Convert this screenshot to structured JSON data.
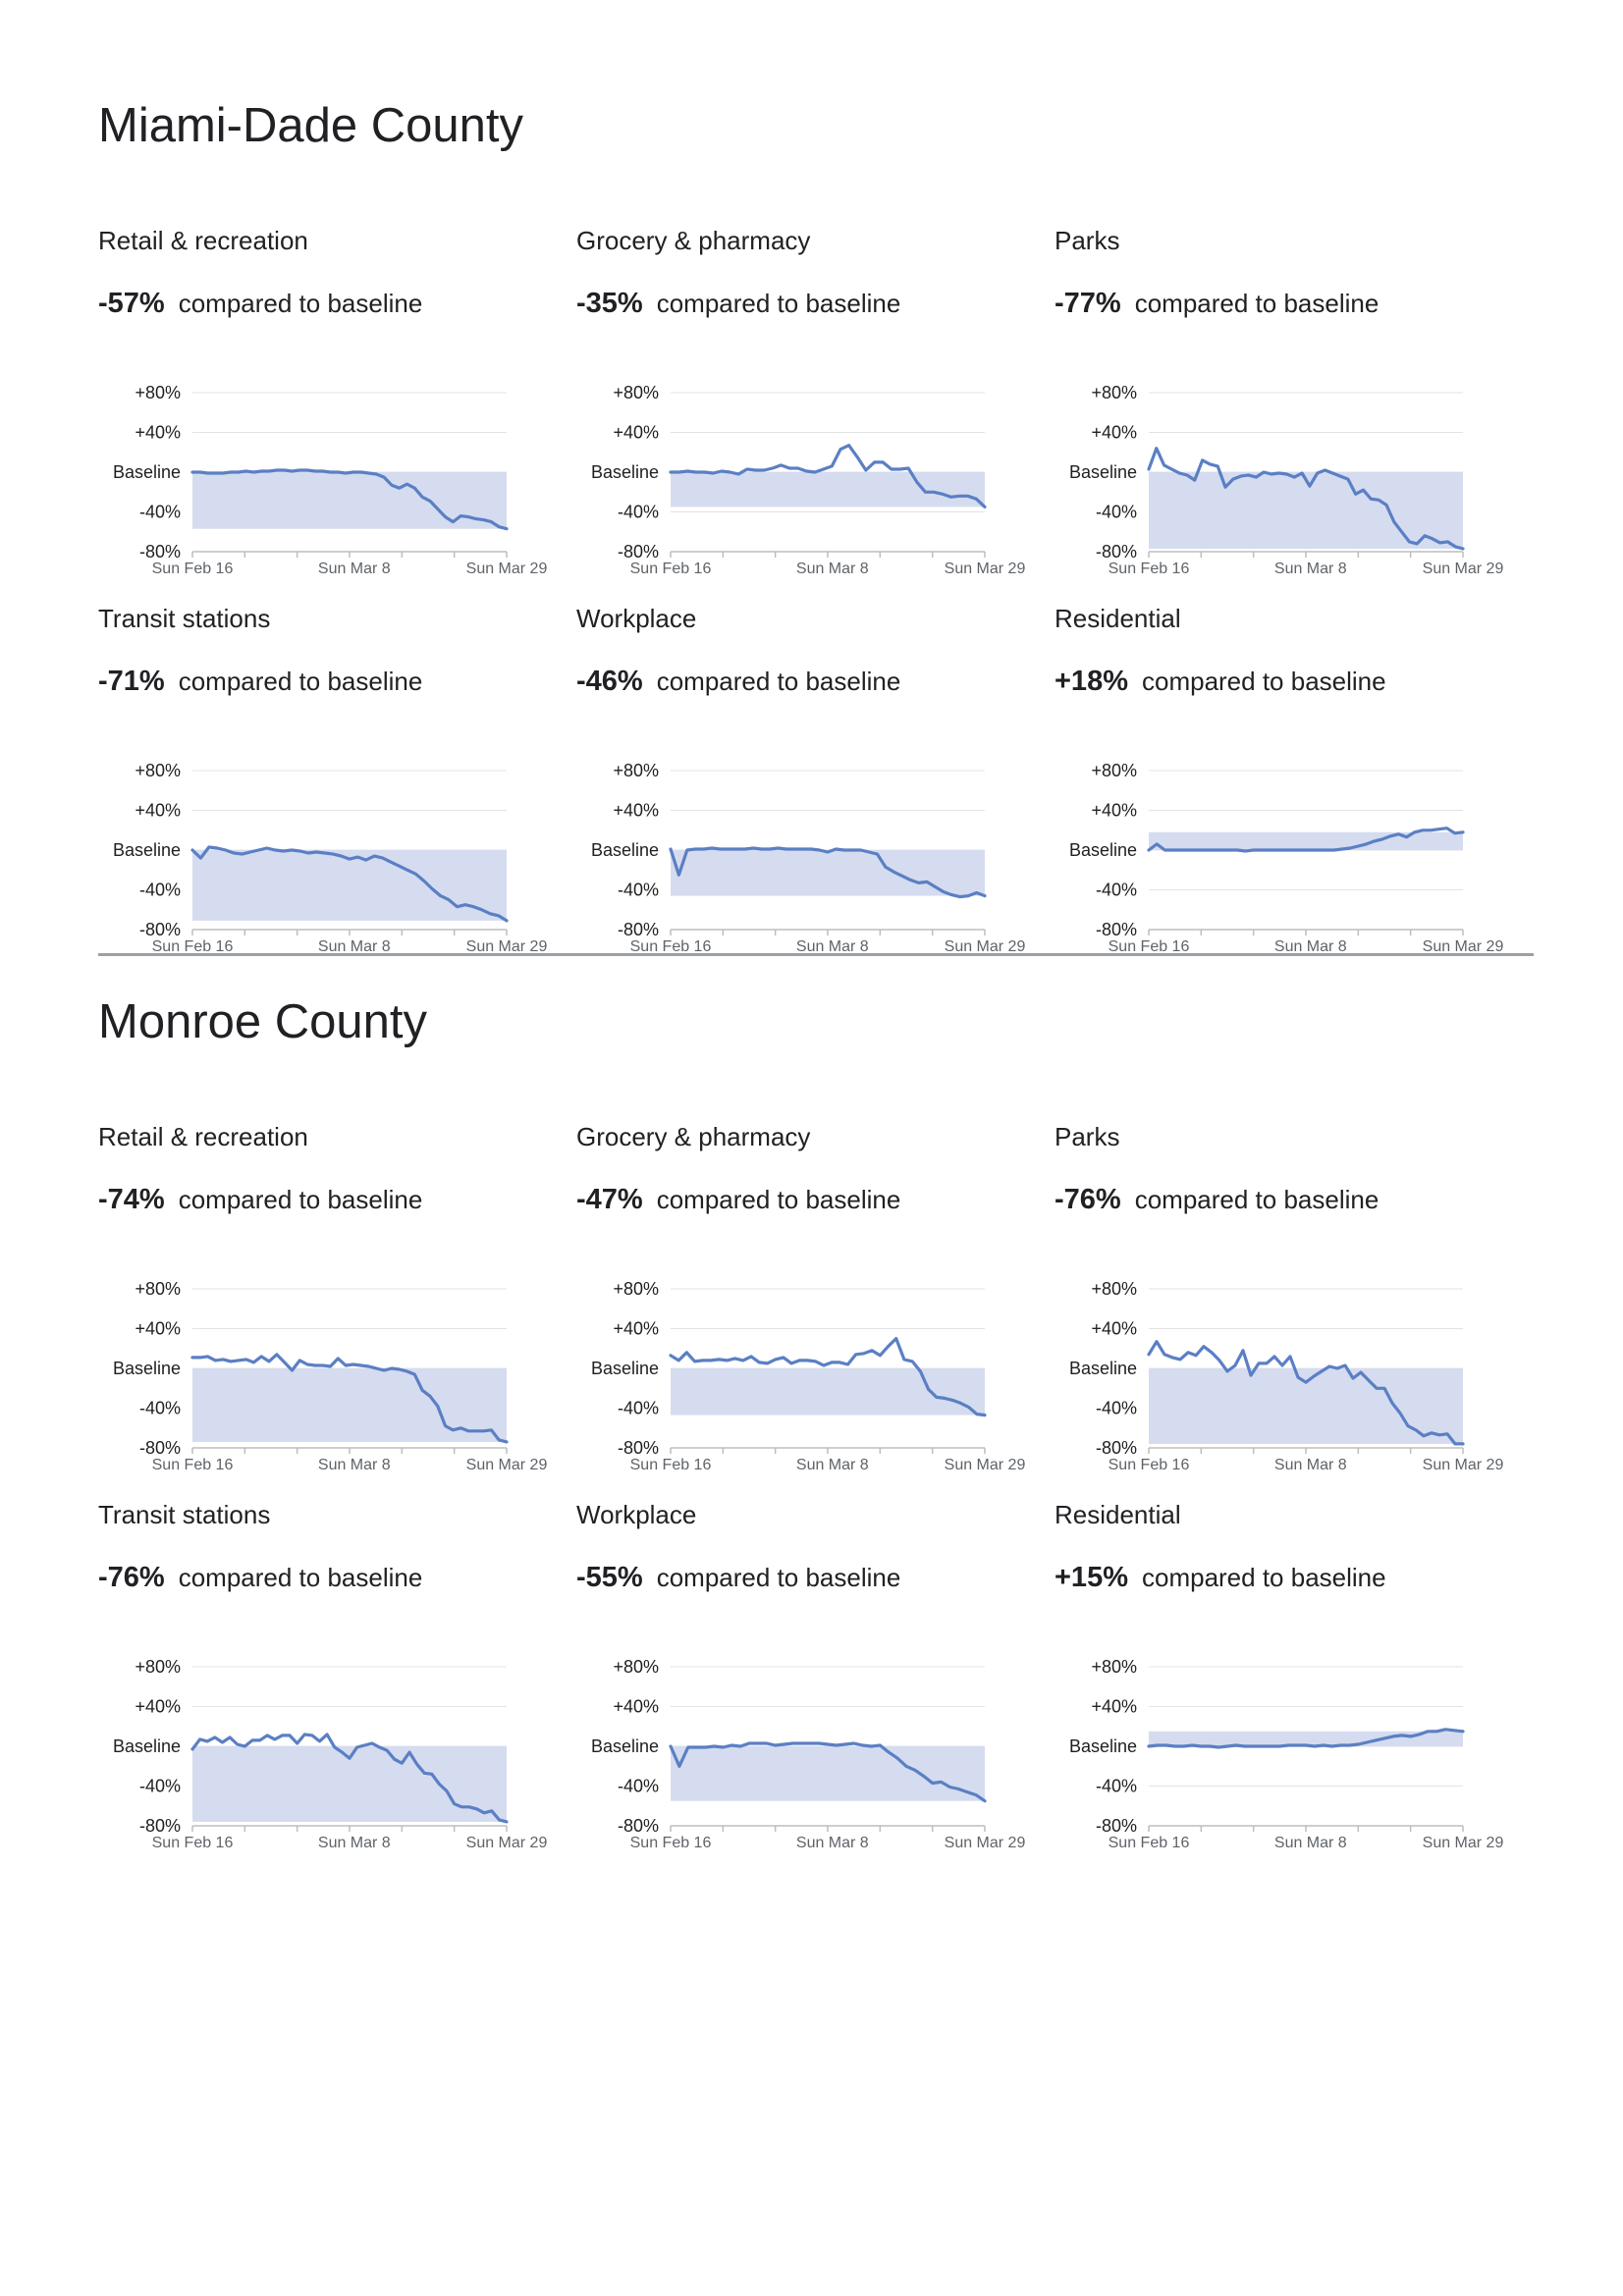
{
  "counties": [
    {
      "name": "Miami-Dade County",
      "panels": [
        {
          "title": "Retail & recreation",
          "value": "-57%",
          "compare_text": "compared to baseline"
        },
        {
          "title": "Grocery & pharmacy",
          "value": "-35%",
          "compare_text": "compared to baseline"
        },
        {
          "title": "Parks",
          "value": "-77%",
          "compare_text": "compared to baseline"
        },
        {
          "title": "Transit stations",
          "value": "-71%",
          "compare_text": "compared to baseline"
        },
        {
          "title": "Workplace",
          "value": "-46%",
          "compare_text": "compared to baseline"
        },
        {
          "title": "Residential",
          "value": "+18%",
          "compare_text": "compared to baseline"
        }
      ]
    },
    {
      "name": "Monroe County",
      "panels": [
        {
          "title": "Retail & recreation",
          "value": "-74%",
          "compare_text": "compared to baseline"
        },
        {
          "title": "Grocery & pharmacy",
          "value": "-47%",
          "compare_text": "compared to baseline"
        },
        {
          "title": "Parks",
          "value": "-76%",
          "compare_text": "compared to baseline"
        },
        {
          "title": "Transit stations",
          "value": "-76%",
          "compare_text": "compared to baseline"
        },
        {
          "title": "Workplace",
          "value": "-55%",
          "compare_text": "compared to baseline"
        },
        {
          "title": "Residential",
          "value": "+15%",
          "compare_text": "compared to baseline"
        }
      ]
    }
  ],
  "chart_data": [
    {
      "type": "area",
      "county": "Miami-Dade County",
      "title": "Retail & recreation",
      "y_tick_labels": [
        "+80%",
        "+40%",
        "Baseline",
        "-40%",
        "-80%"
      ],
      "ylim": [
        -80,
        80
      ],
      "x_tick_labels": [
        "Sun Feb 16",
        "Sun Mar 8",
        "Sun Mar 29"
      ],
      "line_color": "#5b7fc4",
      "fill_color": "#d5dcf0",
      "values": [
        0,
        0,
        -1,
        -1,
        -1,
        0,
        0,
        1,
        0,
        1,
        1,
        2,
        2,
        1,
        2,
        2,
        1,
        1,
        0,
        0,
        -1,
        0,
        0,
        -1,
        -2,
        -5,
        -13,
        -16,
        -12,
        -16,
        -25,
        -29,
        -37,
        -45,
        -50,
        -44,
        -45,
        -47,
        -48,
        -50,
        -55,
        -57
      ]
    },
    {
      "type": "area",
      "county": "Miami-Dade County",
      "title": "Grocery & pharmacy",
      "y_tick_labels": [
        "+80%",
        "+40%",
        "Baseline",
        "-40%",
        "-80%"
      ],
      "ylim": [
        -80,
        80
      ],
      "x_tick_labels": [
        "Sun Feb 16",
        "Sun Mar 8",
        "Sun Mar 29"
      ],
      "line_color": "#5b7fc4",
      "fill_color": "#d5dcf0",
      "values": [
        0,
        0,
        1,
        0,
        0,
        -1,
        1,
        0,
        -2,
        3,
        2,
        2,
        4,
        7,
        4,
        4,
        1,
        0,
        3,
        6,
        23,
        27,
        15,
        2,
        10,
        10,
        3,
        3,
        4,
        -10,
        -20,
        -20,
        -22,
        -25,
        -24,
        -24,
        -27,
        -35
      ]
    },
    {
      "type": "area",
      "county": "Miami-Dade County",
      "title": "Parks",
      "y_tick_labels": [
        "+80%",
        "+40%",
        "Baseline",
        "-40%",
        "-80%"
      ],
      "ylim": [
        -80,
        80
      ],
      "x_tick_labels": [
        "Sun Feb 16",
        "Sun Mar 8",
        "Sun Mar 29"
      ],
      "line_color": "#5b7fc4",
      "fill_color": "#d5dcf0",
      "values": [
        3,
        24,
        7,
        3,
        -1,
        -3,
        -8,
        12,
        8,
        6,
        -15,
        -7,
        -4,
        -3,
        -5,
        0,
        -2,
        -1,
        -2,
        -5,
        -1,
        -14,
        -1,
        2,
        -1,
        -4,
        -7,
        -22,
        -18,
        -27,
        -28,
        -33,
        -50,
        -60,
        -70,
        -72,
        -64,
        -67,
        -71,
        -70,
        -75,
        -77
      ]
    },
    {
      "type": "area",
      "county": "Miami-Dade County",
      "title": "Transit stations",
      "y_tick_labels": [
        "+80%",
        "+40%",
        "Baseline",
        "-40%",
        "-80%"
      ],
      "ylim": [
        -80,
        80
      ],
      "x_tick_labels": [
        "Sun Feb 16",
        "Sun Mar 8",
        "Sun Mar 29"
      ],
      "line_color": "#5b7fc4",
      "fill_color": "#d5dcf0",
      "values": [
        0,
        -8,
        3,
        2,
        0,
        -3,
        -4,
        -2,
        0,
        2,
        0,
        -1,
        0,
        -1,
        -3,
        -2,
        -3,
        -4,
        -6,
        -9,
        -7,
        -10,
        -6,
        -8,
        -12,
        -16,
        -20,
        -24,
        -31,
        -39,
        -46,
        -50,
        -57,
        -55,
        -57,
        -60,
        -64,
        -66,
        -71
      ]
    },
    {
      "type": "area",
      "county": "Miami-Dade County",
      "title": "Workplace",
      "y_tick_labels": [
        "+80%",
        "+40%",
        "Baseline",
        "-40%",
        "-80%"
      ],
      "ylim": [
        -80,
        80
      ],
      "x_tick_labels": [
        "Sun Feb 16",
        "Sun Mar 8",
        "Sun Mar 29"
      ],
      "line_color": "#5b7fc4",
      "fill_color": "#d5dcf0",
      "values": [
        1,
        -25,
        0,
        1,
        1,
        2,
        1,
        1,
        1,
        1,
        2,
        1,
        1,
        2,
        1,
        1,
        1,
        1,
        0,
        -2,
        1,
        0,
        0,
        0,
        -2,
        -4,
        -17,
        -22,
        -26,
        -30,
        -33,
        -32,
        -37,
        -42,
        -45,
        -47,
        -46,
        -43,
        -46
      ]
    },
    {
      "type": "area",
      "county": "Miami-Dade County",
      "title": "Residential",
      "y_tick_labels": [
        "+80%",
        "+40%",
        "Baseline",
        "-40%",
        "-80%"
      ],
      "ylim": [
        -80,
        80
      ],
      "x_tick_labels": [
        "Sun Feb 16",
        "Sun Mar 8",
        "Sun Mar 29"
      ],
      "line_color": "#5b7fc4",
      "fill_color": "#d5dcf0",
      "values": [
        0,
        6,
        0,
        0,
        0,
        0,
        0,
        0,
        0,
        0,
        0,
        0,
        -1,
        0,
        0,
        0,
        0,
        0,
        0,
        0,
        0,
        0,
        0,
        0,
        1,
        2,
        4,
        6,
        9,
        11,
        14,
        16,
        13,
        18,
        20,
        20,
        21,
        22,
        17,
        18
      ]
    },
    {
      "type": "area",
      "county": "Monroe County",
      "title": "Retail & recreation",
      "y_tick_labels": [
        "+80%",
        "+40%",
        "Baseline",
        "-40%",
        "-80%"
      ],
      "ylim": [
        -80,
        80
      ],
      "x_tick_labels": [
        "Sun Feb 16",
        "Sun Mar 8",
        "Sun Mar 29"
      ],
      "line_color": "#5b7fc4",
      "fill_color": "#d5dcf0",
      "values": [
        11,
        11,
        12,
        8,
        9,
        7,
        8,
        9,
        6,
        12,
        7,
        14,
        6,
        -2,
        8,
        4,
        3,
        3,
        2,
        10,
        3,
        4,
        3,
        2,
        0,
        -2,
        0,
        -1,
        -3,
        -6,
        -22,
        -28,
        -38,
        -58,
        -62,
        -60,
        -63,
        -63,
        -63,
        -62,
        -72,
        -74
      ]
    },
    {
      "type": "area",
      "county": "Monroe County",
      "title": "Grocery & pharmacy",
      "y_tick_labels": [
        "+80%",
        "+40%",
        "Baseline",
        "-40%",
        "-80%"
      ],
      "ylim": [
        -80,
        80
      ],
      "x_tick_labels": [
        "Sun Feb 16",
        "Sun Mar 8",
        "Sun Mar 29"
      ],
      "line_color": "#5b7fc4",
      "fill_color": "#d5dcf0",
      "values": [
        13,
        8,
        16,
        7,
        8,
        8,
        9,
        8,
        10,
        8,
        12,
        6,
        5,
        9,
        11,
        5,
        8,
        8,
        7,
        3,
        6,
        6,
        4,
        14,
        15,
        18,
        13,
        22,
        30,
        9,
        7,
        -3,
        -21,
        -29,
        -30,
        -32,
        -35,
        -39,
        -46,
        -47
      ]
    },
    {
      "type": "area",
      "county": "Monroe County",
      "title": "Parks",
      "y_tick_labels": [
        "+80%",
        "+40%",
        "Baseline",
        "-40%",
        "-80%"
      ],
      "ylim": [
        -80,
        80
      ],
      "x_tick_labels": [
        "Sun Feb 16",
        "Sun Mar 8",
        "Sun Mar 29"
      ],
      "line_color": "#5b7fc4",
      "fill_color": "#d5dcf0",
      "values": [
        14,
        27,
        14,
        11,
        9,
        16,
        13,
        22,
        16,
        8,
        -3,
        3,
        18,
        -7,
        5,
        5,
        12,
        3,
        12,
        -9,
        -14,
        -8,
        -3,
        2,
        0,
        3,
        -10,
        -4,
        -12,
        -20,
        -20,
        -35,
        -45,
        -58,
        -62,
        -68,
        -65,
        -67,
        -66,
        -76,
        -76
      ]
    },
    {
      "type": "area",
      "county": "Monroe County",
      "title": "Transit stations",
      "y_tick_labels": [
        "+80%",
        "+40%",
        "Baseline",
        "-40%",
        "-80%"
      ],
      "ylim": [
        -80,
        80
      ],
      "x_tick_labels": [
        "Sun Feb 16",
        "Sun Mar 8",
        "Sun Mar 29"
      ],
      "line_color": "#5b7fc4",
      "fill_color": "#d5dcf0",
      "values": [
        -3,
        7,
        5,
        9,
        4,
        9,
        2,
        0,
        6,
        6,
        11,
        7,
        11,
        11,
        3,
        12,
        11,
        5,
        12,
        -1,
        -6,
        -12,
        -1,
        1,
        3,
        -1,
        -4,
        -13,
        -17,
        -6,
        -18,
        -27,
        -28,
        -38,
        -45,
        -58,
        -61,
        -61,
        -63,
        -67,
        -65,
        -74,
        -76
      ]
    },
    {
      "type": "area",
      "county": "Monroe County",
      "title": "Workplace",
      "y_tick_labels": [
        "+80%",
        "+40%",
        "Baseline",
        "-40%",
        "-80%"
      ],
      "ylim": [
        -80,
        80
      ],
      "x_tick_labels": [
        "Sun Feb 16",
        "Sun Mar 8",
        "Sun Mar 29"
      ],
      "line_color": "#5b7fc4",
      "fill_color": "#d5dcf0",
      "values": [
        0,
        -20,
        -1,
        -1,
        -1,
        0,
        -1,
        1,
        0,
        3,
        3,
        3,
        1,
        2,
        3,
        3,
        3,
        3,
        2,
        1,
        2,
        3,
        1,
        0,
        1,
        -6,
        -12,
        -20,
        -24,
        -30,
        -37,
        -36,
        -41,
        -43,
        -46,
        -49,
        -55
      ]
    },
    {
      "type": "area",
      "county": "Monroe County",
      "title": "Residential",
      "y_tick_labels": [
        "+80%",
        "+40%",
        "Baseline",
        "-40%",
        "-80%"
      ],
      "ylim": [
        -80,
        80
      ],
      "x_tick_labels": [
        "Sun Feb 16",
        "Sun Mar 8",
        "Sun Mar 29"
      ],
      "line_color": "#5b7fc4",
      "fill_color": "#d5dcf0",
      "values": [
        0,
        1,
        1,
        0,
        0,
        1,
        0,
        0,
        -1,
        0,
        1,
        0,
        0,
        0,
        0,
        0,
        1,
        1,
        1,
        0,
        1,
        0,
        1,
        1,
        2,
        4,
        6,
        8,
        10,
        11,
        10,
        12,
        15,
        15,
        17,
        16,
        15
      ]
    }
  ]
}
